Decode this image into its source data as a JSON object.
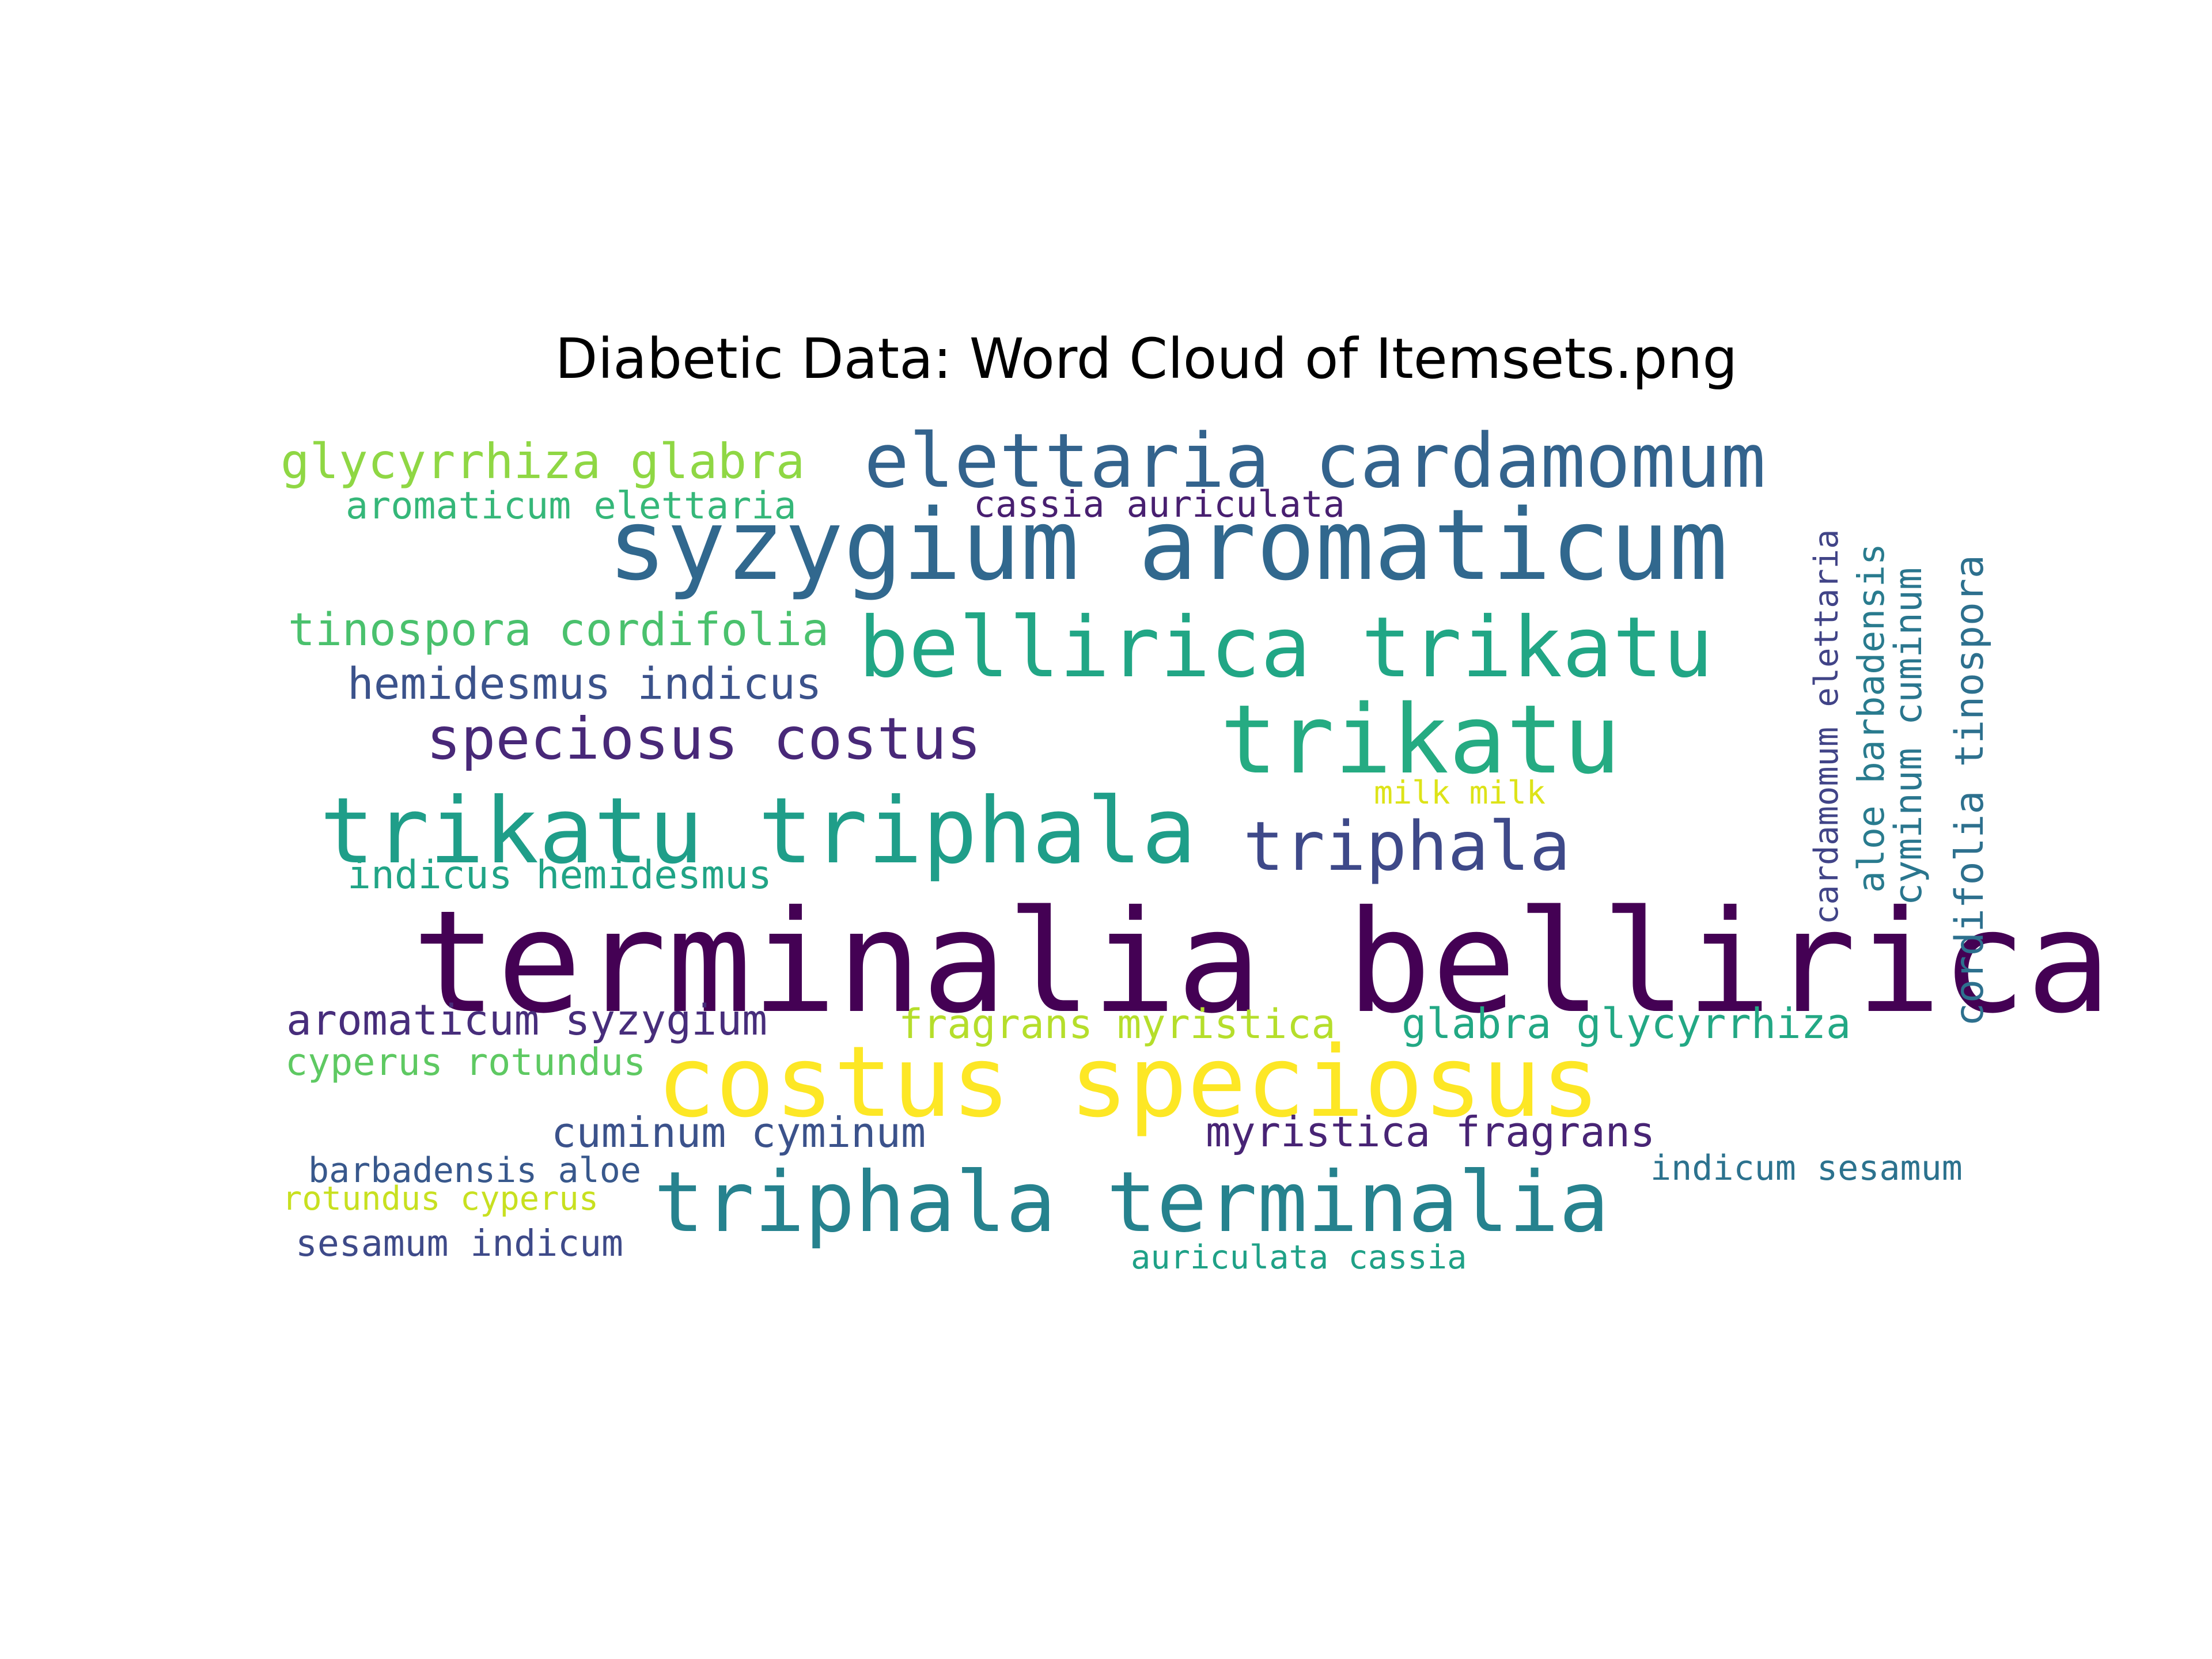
{
  "chart_data": {
    "type": "wordcloud",
    "title": "Diabetic Data: Word Cloud of Itemsets.png",
    "axes": "off",
    "colormap": "viridis",
    "words": [
      {
        "text": "terminalia bellirica",
        "color": "#440154"
      },
      {
        "text": "syzygium aromaticum",
        "color": "#31688e"
      },
      {
        "text": "costus speciosus",
        "color": "#fde725"
      },
      {
        "text": "triphala terminalia",
        "color": "#26828e"
      },
      {
        "text": "trikatu triphala",
        "color": "#1f9e89"
      },
      {
        "text": "bellirica trikatu",
        "color": "#21a685"
      },
      {
        "text": "trikatu",
        "color": "#25ab82"
      },
      {
        "text": "elettaria cardamomum",
        "color": "#33638d"
      },
      {
        "text": "triphala",
        "color": "#3e4989"
      },
      {
        "text": "speciosus costus",
        "color": "#482878"
      },
      {
        "text": "glycyrrhiza glabra",
        "color": "#8fd744"
      },
      {
        "text": "tinospora cordifolia",
        "color": "#4ac16d"
      },
      {
        "text": "hemidesmus indicus",
        "color": "#3b528b"
      },
      {
        "text": "aromaticum elettaria",
        "color": "#35b779"
      },
      {
        "text": "cassia auriculata",
        "color": "#481f70"
      },
      {
        "text": "indicus hemidesmus",
        "color": "#20a486"
      },
      {
        "text": "aromaticum syzygium",
        "color": "#472d7b"
      },
      {
        "text": "fragrans myristica",
        "color": "#b5de2b"
      },
      {
        "text": "glabra glycyrrhiza",
        "color": "#22a884"
      },
      {
        "text": "cyperus rotundus",
        "color": "#5ec962"
      },
      {
        "text": "cuminum cyminum",
        "color": "#3b528b"
      },
      {
        "text": "myristica fragrans",
        "color": "#482475"
      },
      {
        "text": "barbadensis aloe",
        "color": "#38588c"
      },
      {
        "text": "rotundus cyperus",
        "color": "#c8e020"
      },
      {
        "text": "sesamum indicum",
        "color": "#3e4a89"
      },
      {
        "text": "indicum sesamum",
        "color": "#2c728e"
      },
      {
        "text": "auriculata cassia",
        "color": "#1fa187"
      },
      {
        "text": "milk milk",
        "color": "#dde318"
      },
      {
        "text": "cardamomum elettaria",
        "color": "#414487"
      },
      {
        "text": "aloe barbadensis",
        "color": "#297b8e"
      },
      {
        "text": "cyminum cuminum",
        "color": "#2a768e"
      },
      {
        "text": "cordifolia tinospora",
        "color": "#2d708e"
      }
    ]
  }
}
